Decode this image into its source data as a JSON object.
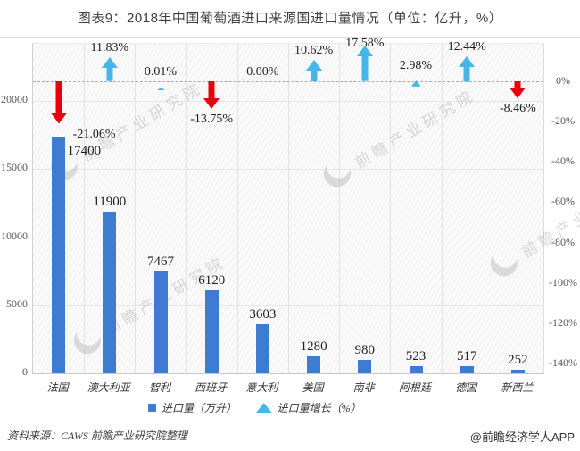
{
  "title": "图表9：2018年中国葡萄酒进口来源国进口量情况（单位：亿升，%）",
  "chart_data": {
    "type": "bar",
    "title": "图表9：2018年中国葡萄酒进口来源国进口量情况（单位：亿升，%）",
    "categories": [
      "法国",
      "澳大利亚",
      "智利",
      "西班牙",
      "意大利",
      "美国",
      "南非",
      "阿根廷",
      "德国",
      "新西兰"
    ],
    "series": [
      {
        "name": "进口量（万升）",
        "type": "bar",
        "color": "#3d7cd0",
        "values": [
          17400,
          11900,
          7467,
          6120,
          3603,
          1280,
          980,
          523,
          517,
          252
        ],
        "value_labels": [
          "17400",
          "11900",
          "7467",
          "6120",
          "3603",
          "1280",
          "980",
          "523",
          "517",
          "252"
        ]
      },
      {
        "name": "进口量增长（%）",
        "type": "arrow",
        "color_up": "#45b6ea",
        "color_down": "#e60012",
        "values": [
          -21.06,
          11.83,
          0.01,
          -13.75,
          0.0,
          10.62,
          17.58,
          2.98,
          12.44,
          -8.46
        ],
        "value_labels": [
          "-21.06%",
          "11.83%",
          "0.01%",
          "-13.75%",
          "0.00%",
          "10.62%",
          "17.58%",
          "2.98%",
          "12.44%",
          "-8.46%"
        ]
      }
    ],
    "left_axis": {
      "ticks": [
        "0",
        "5000",
        "10000",
        "15000",
        "20000"
      ],
      "tick_step": 5000
    },
    "right_axis": {
      "ticks": [
        "0%",
        "-20%",
        "-40%",
        "-60%",
        "-80%",
        "-100%",
        "-120%",
        "-140%"
      ],
      "tick_step_pct": -20
    },
    "grid": true,
    "legend_position": "bottom"
  },
  "legend": {
    "items": [
      {
        "label": "进口量（万升）",
        "marker": "square",
        "color": "#3d7cd0"
      },
      {
        "label": "进口量增长（%）",
        "marker": "up-arrow",
        "color": "#45b6ea"
      }
    ]
  },
  "watermark": {
    "text": "前瞻产业研究院"
  },
  "footer": {
    "source": "资料来源：CAWS  前瞻产业研究院整理",
    "credit": "@前瞻经济学人APP"
  }
}
